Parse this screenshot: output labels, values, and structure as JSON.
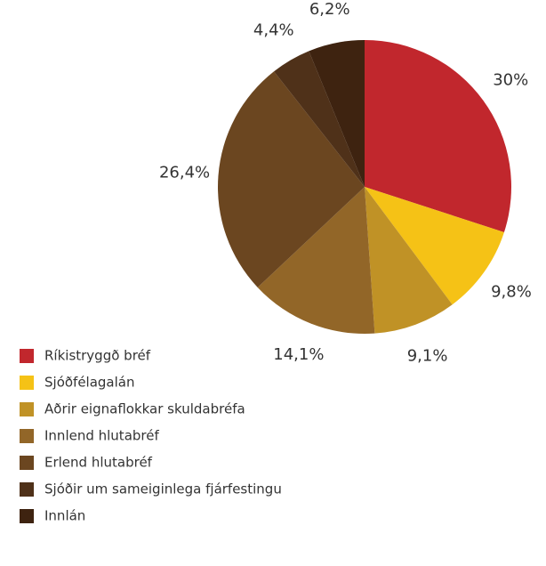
{
  "chart_data": {
    "type": "pie",
    "categories": [
      "Ríkistryggð bréf",
      "Sjóðfélagalán",
      "Aðrir eignaflokkar skuldabréfa",
      "Innlend hlutabréf",
      "Erlend hlutabréf",
      "Sjóðir um sameiginlega fjárfestingu",
      "Innlán"
    ],
    "values": [
      30,
      9.8,
      9.1,
      14.1,
      26.4,
      4.4,
      6.2
    ],
    "value_labels": [
      "30%",
      "9,8%",
      "9,1%",
      "14,1%",
      "26,4%",
      "4,4%",
      "6,2%"
    ],
    "colors": [
      "#c1272d",
      "#f5c216",
      "#c09226",
      "#926628",
      "#6b4620",
      "#4f3119",
      "#3e2310"
    ],
    "legend": "bottom-left"
  }
}
